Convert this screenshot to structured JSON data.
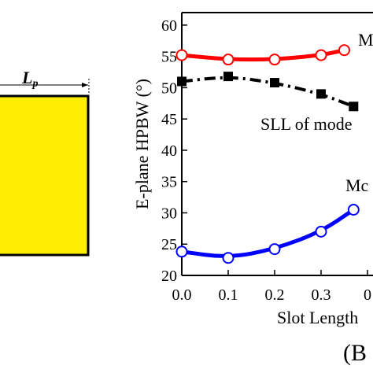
{
  "panel_left": {
    "dimension_label": "L",
    "dimension_subscript": "p",
    "patch_color": "#FFEE00"
  },
  "chart_data": {
    "type": "line",
    "ylabel": "E-plane HPBW (°)",
    "xlabel": "Slot Length",
    "panel_label": "(B",
    "xlim": [
      0.0,
      0.5
    ],
    "ylim": [
      20,
      62
    ],
    "x_ticks": [
      "0.0",
      "0.1",
      "0.2",
      "0.3",
      "0"
    ],
    "y_ticks": [
      "20",
      "25",
      "30",
      "35",
      "40",
      "45",
      "50",
      "55",
      "60"
    ],
    "annotations": [
      "M",
      "SLL of mode",
      "Mc"
    ],
    "series": [
      {
        "color": "#ff0000",
        "style": "solid",
        "marker": "open-circle",
        "x": [
          0.0,
          0.1,
          0.2,
          0.3,
          0.35
        ],
        "y": [
          55.2,
          54.5,
          54.5,
          55.2,
          56.0
        ]
      },
      {
        "color": "#000000",
        "style": "dash-dot",
        "marker": "filled-square",
        "x": [
          0.0,
          0.1,
          0.2,
          0.3,
          0.37
        ],
        "y": [
          51.0,
          51.8,
          50.8,
          49.0,
          47.0
        ]
      },
      {
        "color": "#0000ff",
        "style": "solid",
        "marker": "open-circle",
        "x": [
          0.0,
          0.1,
          0.2,
          0.3,
          0.37
        ],
        "y": [
          23.8,
          22.8,
          24.2,
          27.0,
          30.5
        ]
      }
    ]
  }
}
